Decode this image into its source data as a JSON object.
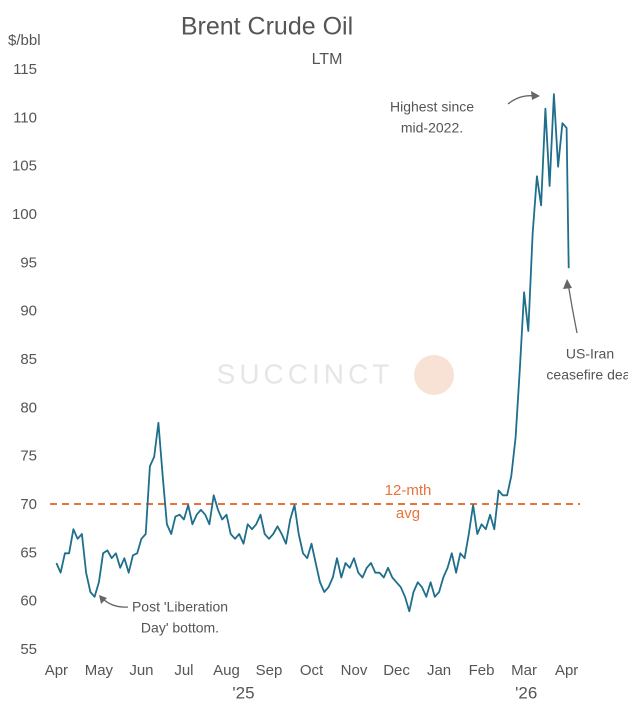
{
  "chart_data": {
    "type": "line",
    "title": "Brent Crude Oil",
    "subtitle": "LTM",
    "y_label": "$/bbl",
    "watermark": "SUCCINCT",
    "xlim": [
      -0.15,
      12.55
    ],
    "xticks": [
      {
        "value": 0,
        "label": "Apr"
      },
      {
        "value": 1,
        "label": "May"
      },
      {
        "value": 2,
        "label": "Jun"
      },
      {
        "value": 3,
        "label": "Jul"
      },
      {
        "value": 4,
        "label": "Aug"
      },
      {
        "value": 5,
        "label": "Sep"
      },
      {
        "value": 6,
        "label": "Oct"
      },
      {
        "value": 7,
        "label": "Nov"
      },
      {
        "value": 8,
        "label": "Dec"
      },
      {
        "value": 9,
        "label": "Jan"
      },
      {
        "value": 10,
        "label": "Feb"
      },
      {
        "value": 11,
        "label": "Mar"
      },
      {
        "value": 12,
        "label": "Apr"
      }
    ],
    "year_labels": [
      {
        "value": 4.4,
        "label": "'25"
      },
      {
        "value": 11.05,
        "label": "'26"
      }
    ],
    "ylim": [
      55,
      115
    ],
    "yticks": [
      55,
      60,
      65,
      70,
      75,
      80,
      85,
      90,
      95,
      100,
      105,
      110,
      115
    ],
    "grid": false,
    "series": [
      {
        "name": "Brent",
        "color": "#1f6e8c",
        "x": [
          0,
          0.1,
          0.2,
          0.3,
          0.4,
          0.5,
          0.6,
          0.7,
          0.8,
          0.9,
          1,
          1.1,
          1.2,
          1.3,
          1.4,
          1.5,
          1.6,
          1.7,
          1.8,
          1.9,
          2,
          2.1,
          2.2,
          2.3,
          2.4,
          2.5,
          2.6,
          2.7,
          2.8,
          2.9,
          3,
          3.1,
          3.2,
          3.3,
          3.4,
          3.5,
          3.6,
          3.7,
          3.8,
          3.9,
          4,
          4.1,
          4.2,
          4.3,
          4.4,
          4.5,
          4.6,
          4.7,
          4.8,
          4.9,
          5,
          5.1,
          5.2,
          5.3,
          5.4,
          5.5,
          5.6,
          5.7,
          5.8,
          5.9,
          6,
          6.1,
          6.2,
          6.3,
          6.4,
          6.5,
          6.6,
          6.7,
          6.8,
          6.9,
          7,
          7.1,
          7.2,
          7.3,
          7.4,
          7.5,
          7.6,
          7.7,
          7.8,
          7.9,
          8,
          8.1,
          8.2,
          8.3,
          8.4,
          8.5,
          8.6,
          8.7,
          8.8,
          8.9,
          9,
          9.1,
          9.2,
          9.3,
          9.4,
          9.5,
          9.6,
          9.7,
          9.8,
          9.9,
          10,
          10.1,
          10.2,
          10.3,
          10.4,
          10.5,
          10.6,
          10.7,
          10.8,
          10.9,
          11,
          11.1,
          11.2,
          11.3,
          11.4,
          11.5,
          11.6,
          11.7,
          11.8,
          11.9,
          12,
          12.05
        ],
        "values": [
          64,
          63,
          65,
          65,
          67.5,
          66.5,
          67,
          63,
          61,
          60.5,
          62,
          65,
          65.3,
          64.5,
          65,
          63.5,
          64.5,
          63,
          64.8,
          65,
          66.5,
          67,
          74,
          75,
          78.5,
          73,
          68,
          67,
          68.8,
          69,
          68.5,
          70,
          68,
          69,
          69.5,
          69,
          68,
          71,
          69.5,
          68.5,
          69,
          67,
          66.5,
          67,
          66,
          68,
          67.5,
          68,
          69,
          67,
          66.5,
          67,
          67.8,
          67,
          66,
          68.5,
          70,
          67,
          65,
          64.5,
          66,
          64,
          62,
          61,
          61.5,
          62.5,
          64.5,
          62.5,
          64,
          63.5,
          64.5,
          63,
          62.5,
          63.5,
          64,
          63,
          63,
          62.5,
          63.5,
          62.5,
          62,
          61.5,
          60.5,
          59,
          61,
          62,
          61.5,
          60.5,
          62,
          60.5,
          61,
          62.5,
          63.5,
          65,
          63,
          65,
          64.5,
          67,
          70,
          67,
          68,
          67.5,
          69,
          67.5,
          71.5,
          71,
          71,
          73,
          77,
          84,
          92,
          88,
          98,
          104,
          101,
          111,
          103,
          112.5,
          105,
          109.5,
          109,
          94.5
        ]
      }
    ],
    "average": {
      "value": 70.1,
      "color": "#e8743b",
      "label": [
        "12-mth",
        "avg"
      ]
    },
    "annotations": [
      {
        "text": [
          "Highest since",
          "mid-2022."
        ]
      },
      {
        "text": [
          "Post 'Liberation",
          "Day' bottom."
        ]
      },
      {
        "text": [
          "US-Iran",
          "ceasefire deal"
        ]
      }
    ]
  }
}
